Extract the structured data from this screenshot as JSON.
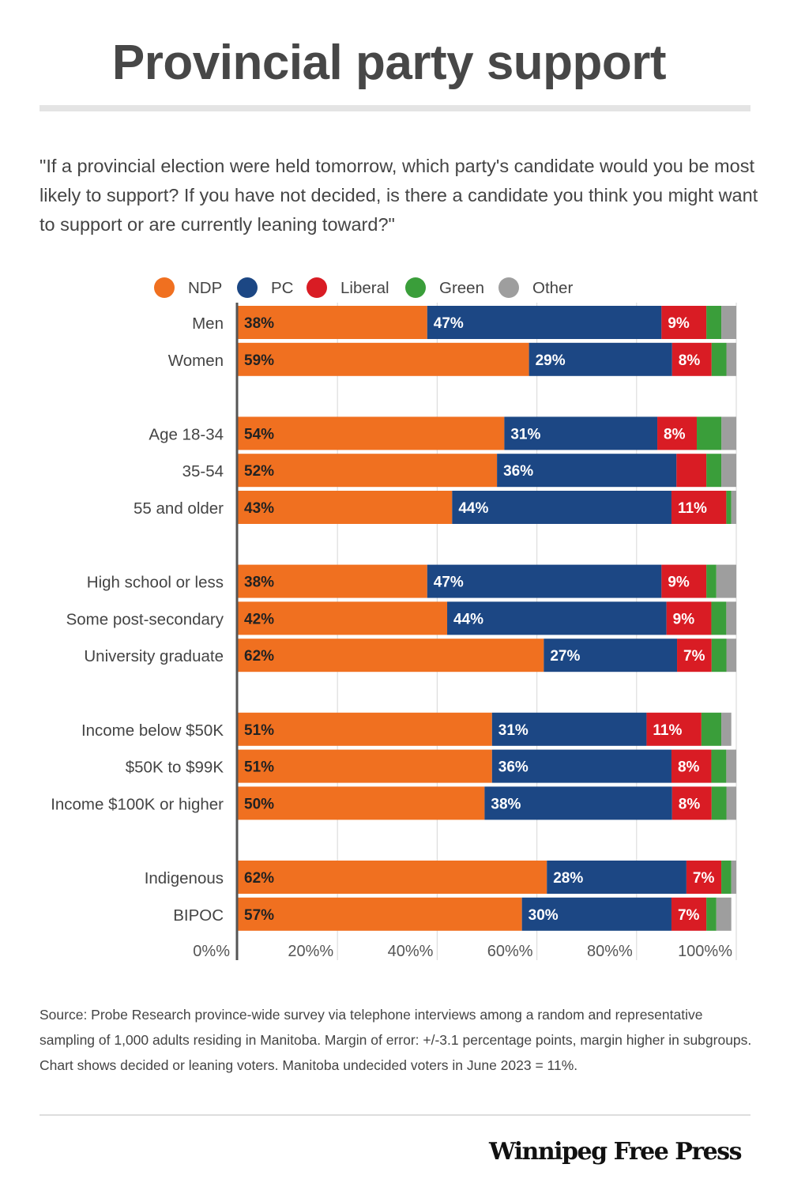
{
  "title": "Provincial party support",
  "question": "\"If a provincial election were held tomorrow, which party's candidate would you be most likely to support? If you have not decided, is there a candidate you think you might want to support or are currently leaning toward?\"",
  "source": "Source:  Probe Research province-wide survey via telephone interviews among a random and representative sampling of 1,000 adults residing in Manitoba.  Margin of error: +/-3.1 percentage points, margin higher in subgroups. Chart shows decided or leaning voters. Manitoba undecided voters in June 2023 = 11%.",
  "brand": "Winnipeg Free Press",
  "chart_data": {
    "type": "bar",
    "orientation": "horizontal",
    "stacked": true,
    "title": "Provincial party support",
    "xlabel": "",
    "ylabel": "",
    "xlim": [
      0,
      100
    ],
    "grid": true,
    "legend_position": "top",
    "x_ticks": [
      0,
      20,
      40,
      60,
      80,
      100
    ],
    "x_tick_labels": [
      "0%%",
      "20%%",
      "40%%",
      "60%%",
      "80%%",
      "100%%"
    ],
    "series": [
      {
        "name": "NDP",
        "color": "#f07020",
        "label_color": "#222222",
        "values": [
          38,
          59,
          54,
          52,
          43,
          38,
          42,
          62,
          51,
          51,
          50,
          62,
          57
        ],
        "labels": [
          "38%",
          "59%",
          "54%",
          "52%",
          "43%",
          "38%",
          "42%",
          "62%",
          "51%",
          "51%",
          "50%",
          "62%",
          "57%"
        ]
      },
      {
        "name": "PC",
        "color": "#1c4784",
        "label_color": "#ffffff",
        "values": [
          47,
          29,
          31,
          36,
          44,
          47,
          44,
          27,
          31,
          36,
          38,
          28,
          30
        ],
        "labels": [
          "47%",
          "29%",
          "31%",
          "36%",
          "44%",
          "47%",
          "44%",
          "27%",
          "31%",
          "36%",
          "38%",
          "28%",
          "30%"
        ]
      },
      {
        "name": "Liberal",
        "color": "#d91c24",
        "label_color": "#ffffff",
        "values": [
          9,
          8,
          8,
          6,
          11,
          9,
          9,
          7,
          11,
          8,
          8,
          7,
          7
        ],
        "labels": [
          "9%",
          "8%",
          "8%",
          "",
          "11%",
          "9%",
          "9%",
          "7%",
          "11%",
          "8%",
          "8%",
          "7%",
          "7%"
        ]
      },
      {
        "name": "Green",
        "color": "#3a9e3a",
        "label_color": "#ffffff",
        "values": [
          3,
          3,
          5,
          3,
          1,
          2,
          3,
          3,
          4,
          3,
          3,
          2,
          2
        ],
        "labels": [
          "",
          "",
          "",
          "",
          "",
          "",
          "",
          "",
          "",
          "",
          "",
          "",
          ""
        ]
      },
      {
        "name": "Other",
        "color": "#9e9e9e",
        "label_color": "#ffffff",
        "values": [
          3,
          2,
          3,
          3,
          1,
          4,
          2,
          2,
          2,
          2,
          2,
          1,
          3
        ],
        "labels": [
          "",
          "",
          "",
          "",
          "",
          "",
          "",
          "",
          "",
          "",
          "",
          "",
          ""
        ]
      }
    ],
    "categories": [
      "Men",
      "Women",
      "Age 18-34",
      "35-54",
      "55 and older",
      "High school or less",
      "Some post-secondary",
      "University graduate",
      "Income below $50K",
      "$50K to $99K",
      "Income $100K or higher",
      "Indigenous",
      "BIPOC"
    ],
    "groups": [
      [
        0,
        1
      ],
      [
        2,
        3,
        4
      ],
      [
        5,
        6,
        7
      ],
      [
        8,
        9,
        10
      ],
      [
        11,
        12
      ]
    ]
  }
}
